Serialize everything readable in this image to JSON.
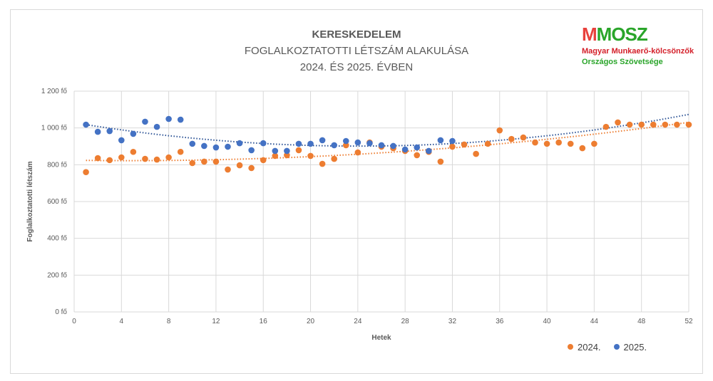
{
  "chart_data": {
    "type": "scatter",
    "title_lines": [
      "KERESKEDELEM",
      "FOGLALKOZTATOTTI LÉTSZÁM ALAKULÁSA",
      "2024. ÉS 2025. ÉVBEN"
    ],
    "xlabel": "Hetek",
    "ylabel": "Foglalkoztatotti létszám",
    "xlim": [
      0,
      52
    ],
    "ylim": [
      0,
      1200
    ],
    "x_ticks": [
      0,
      4,
      8,
      12,
      16,
      20,
      24,
      28,
      32,
      36,
      40,
      44,
      48,
      52
    ],
    "y_ticks": [
      "0 fő",
      "200 fő",
      "400 fő",
      "600 fő",
      "800 fő",
      "1 000 fő",
      "1 200 fő"
    ],
    "y_tick_values": [
      0,
      200,
      400,
      600,
      800,
      1000,
      1200
    ],
    "grid": true,
    "legend_position": "bottom-right",
    "trendline": "polynomial (order 2), dotted",
    "series": [
      {
        "name": "2024.",
        "color": "#ed7d31",
        "x": [
          1,
          2,
          3,
          4,
          5,
          6,
          7,
          8,
          9,
          10,
          11,
          12,
          13,
          14,
          15,
          16,
          17,
          18,
          19,
          20,
          21,
          22,
          23,
          24,
          25,
          26,
          27,
          28,
          29,
          30,
          31,
          32,
          33,
          34,
          35,
          36,
          37,
          38,
          39,
          40,
          41,
          42,
          43,
          44,
          45,
          46,
          47,
          48,
          49,
          50,
          51,
          52
        ],
        "y": [
          760,
          836,
          825,
          840,
          870,
          832,
          828,
          840,
          870,
          809,
          817,
          817,
          774,
          797,
          782,
          825,
          848,
          852,
          879,
          848,
          805,
          832,
          906,
          867,
          921,
          898,
          890,
          875,
          852,
          870,
          817,
          898,
          910,
          859,
          914,
          987,
          940,
          948,
          921,
          914,
          921,
          914,
          890,
          914,
          1006,
          1030,
          1018,
          1018,
          1018,
          1018,
          1018,
          1018
        ]
      },
      {
        "name": "2025.",
        "color": "#4472c4",
        "x": [
          1,
          2,
          3,
          4,
          5,
          6,
          7,
          8,
          9,
          10,
          11,
          12,
          13,
          14,
          15,
          16,
          17,
          18,
          19,
          20,
          21,
          22,
          23,
          24,
          25,
          26,
          27,
          28,
          29,
          30,
          31,
          32
        ],
        "y": [
          1018,
          979,
          983,
          933,
          968,
          1034,
          1006,
          1049,
          1045,
          914,
          902,
          894,
          898,
          917,
          879,
          917,
          875,
          875,
          914,
          914,
          933,
          906,
          929,
          921,
          917,
          906,
          902,
          883,
          894,
          875,
          933,
          929
        ]
      }
    ]
  },
  "logo": {
    "mark": "MMOSZ",
    "line1": "Magyar Munkaerő-kölcsönzők",
    "line2": "Országos Szövetsége"
  }
}
